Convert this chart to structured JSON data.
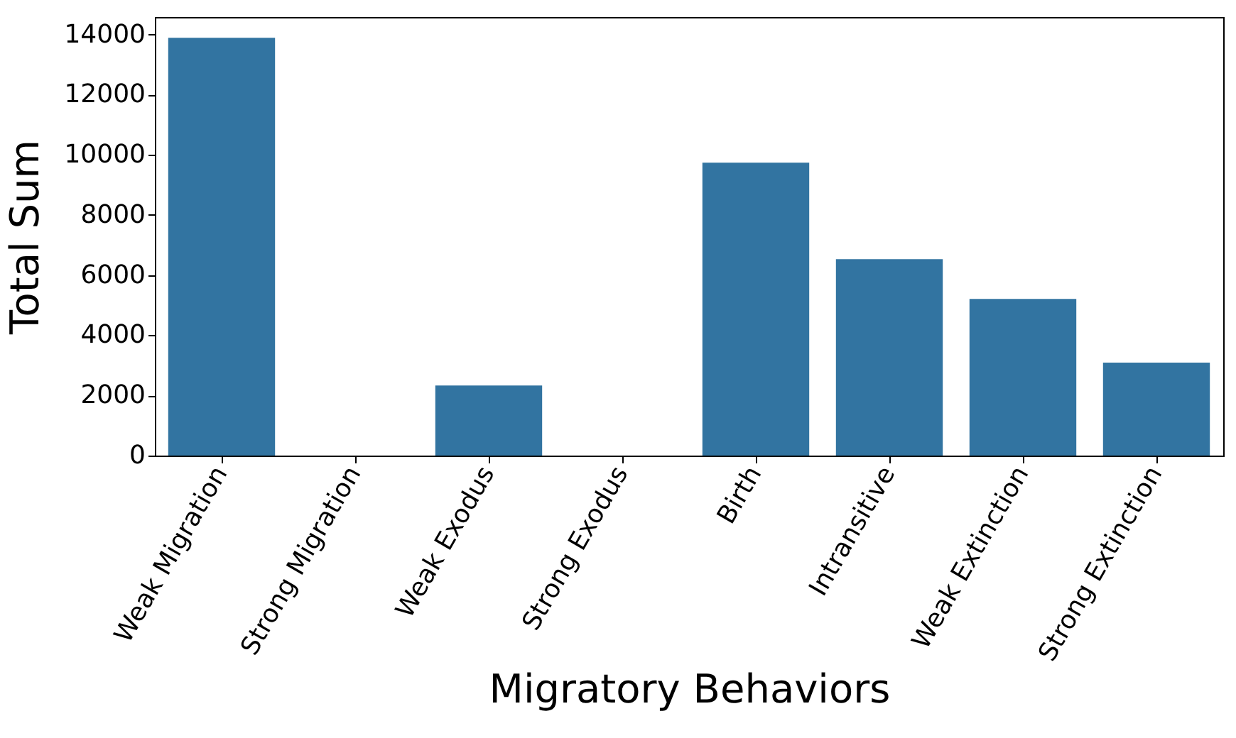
{
  "chart_data": {
    "type": "bar",
    "xlabel": "Migratory Behaviors",
    "ylabel": "Total Sum",
    "categories": [
      "Weak Migration",
      "Strong Migration",
      "Weak Exodus",
      "Strong Exodus",
      "Birth",
      "Intransitive",
      "Weak Extinction",
      "Strong Extinction"
    ],
    "values": [
      13890,
      0,
      2330,
      0,
      9740,
      6530,
      5210,
      3090
    ],
    "color": "#3274a1",
    "ylim": [
      0,
      14580
    ],
    "yticks": [
      0,
      2000,
      4000,
      6000,
      8000,
      10000,
      12000,
      14000
    ],
    "grid": false
  }
}
